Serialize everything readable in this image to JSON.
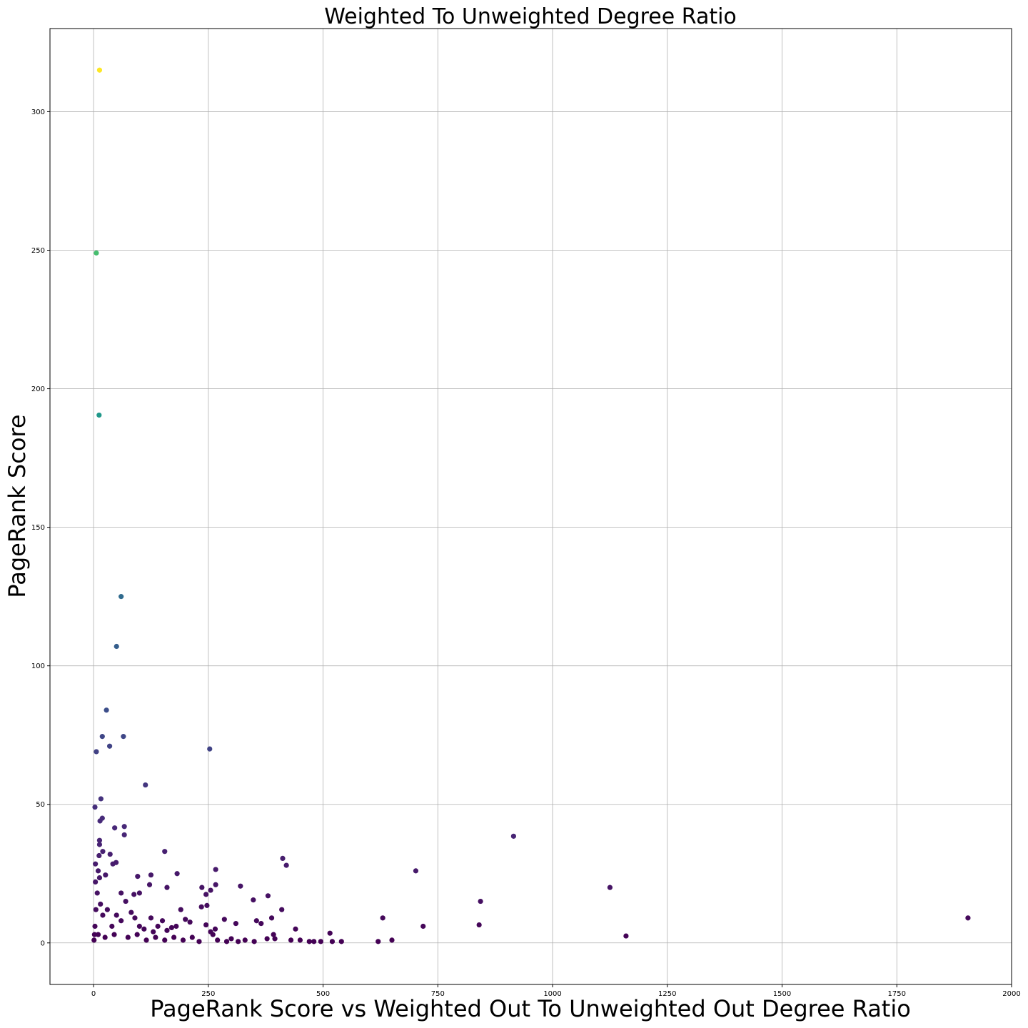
{
  "chart_data": {
    "type": "scatter",
    "title": "Weighted To Unweighted Degree Ratio",
    "xlabel": "PageRank Score vs Weighted Out To Unweighted Out Degree Ratio",
    "ylabel": "PageRank Score",
    "xlim": [
      -95,
      2000
    ],
    "ylim": [
      -15,
      330
    ],
    "xticks": [
      0,
      250,
      500,
      750,
      1000,
      1250,
      1500,
      1750,
      2000
    ],
    "yticks": [
      0,
      50,
      100,
      150,
      200,
      250,
      300
    ],
    "grid": true,
    "colormap": "viridis",
    "color_encodes": "y",
    "points": [
      [
        13,
        315
      ],
      [
        6,
        249
      ],
      [
        12,
        190.5
      ],
      [
        60,
        125
      ],
      [
        50,
        107
      ],
      [
        28,
        84
      ],
      [
        19,
        74.5
      ],
      [
        65,
        74.5
      ],
      [
        35,
        71
      ],
      [
        253,
        70
      ],
      [
        6,
        69
      ],
      [
        113,
        57
      ],
      [
        16,
        52
      ],
      [
        3,
        49
      ],
      [
        19,
        45
      ],
      [
        14,
        44
      ],
      [
        67,
        42
      ],
      [
        46,
        41.5
      ],
      [
        67,
        39
      ],
      [
        13,
        37
      ],
      [
        13,
        35.5
      ],
      [
        155,
        33
      ],
      [
        20,
        33
      ],
      [
        36,
        32
      ],
      [
        12,
        31.5
      ],
      [
        412,
        30.5
      ],
      [
        49,
        29
      ],
      [
        4,
        28.5
      ],
      [
        42,
        28.5
      ],
      [
        420,
        28
      ],
      [
        266,
        26.5
      ],
      [
        10,
        26
      ],
      [
        182,
        25
      ],
      [
        26,
        24.5
      ],
      [
        96,
        24
      ],
      [
        125,
        24.5
      ],
      [
        13,
        23.5
      ],
      [
        4,
        22
      ],
      [
        320,
        20.5
      ],
      [
        266,
        21
      ],
      [
        122,
        21
      ],
      [
        160,
        20
      ],
      [
        236,
        20
      ],
      [
        255,
        19
      ],
      [
        245,
        17.5
      ],
      [
        380,
        17
      ],
      [
        88,
        17.5
      ],
      [
        60,
        18
      ],
      [
        100,
        18
      ],
      [
        348,
        15.5
      ],
      [
        235,
        13
      ],
      [
        247,
        13.5
      ],
      [
        190,
        12
      ],
      [
        410,
        12
      ],
      [
        70,
        15
      ],
      [
        82,
        11
      ],
      [
        30,
        12
      ],
      [
        50,
        10
      ],
      [
        90,
        9
      ],
      [
        125,
        9
      ],
      [
        150,
        8
      ],
      [
        200,
        8.5
      ],
      [
        210,
        7.5
      ],
      [
        310,
        7
      ],
      [
        285,
        8.5
      ],
      [
        355,
        8
      ],
      [
        365,
        7
      ],
      [
        388,
        9
      ],
      [
        440,
        5
      ],
      [
        265,
        5
      ],
      [
        245,
        6.5
      ],
      [
        255,
        4
      ],
      [
        260,
        3
      ],
      [
        180,
        6
      ],
      [
        170,
        5.5
      ],
      [
        160,
        4.5
      ],
      [
        140,
        6
      ],
      [
        130,
        4
      ],
      [
        110,
        5
      ],
      [
        100,
        6
      ],
      [
        60,
        8
      ],
      [
        40,
        6
      ],
      [
        20,
        10
      ],
      [
        15,
        14
      ],
      [
        8,
        18
      ],
      [
        5,
        12
      ],
      [
        3,
        6
      ],
      [
        2,
        3
      ],
      [
        1,
        1
      ],
      [
        10,
        3
      ],
      [
        25,
        2
      ],
      [
        45,
        3
      ],
      [
        75,
        2
      ],
      [
        95,
        3
      ],
      [
        115,
        1
      ],
      [
        135,
        2
      ],
      [
        155,
        1
      ],
      [
        175,
        2
      ],
      [
        195,
        1
      ],
      [
        215,
        2
      ],
      [
        230,
        0.5
      ],
      [
        270,
        1
      ],
      [
        290,
        0.5
      ],
      [
        300,
        1.5
      ],
      [
        315,
        0.5
      ],
      [
        330,
        1
      ],
      [
        350,
        0.5
      ],
      [
        392,
        3
      ],
      [
        378,
        1.5
      ],
      [
        395,
        1.5
      ],
      [
        430,
        1
      ],
      [
        450,
        1
      ],
      [
        470,
        0.5
      ],
      [
        480,
        0.5
      ],
      [
        495,
        0.5
      ],
      [
        515,
        3.5
      ],
      [
        520,
        0.5
      ],
      [
        540,
        0.5
      ],
      [
        620,
        0.5
      ],
      [
        650,
        1
      ],
      [
        630,
        9
      ],
      [
        702,
        26
      ],
      [
        718,
        6
      ],
      [
        840,
        6.5
      ],
      [
        843,
        15
      ],
      [
        915,
        38.5
      ],
      [
        1125,
        20
      ],
      [
        1160,
        2.5
      ],
      [
        1905,
        9
      ]
    ]
  }
}
